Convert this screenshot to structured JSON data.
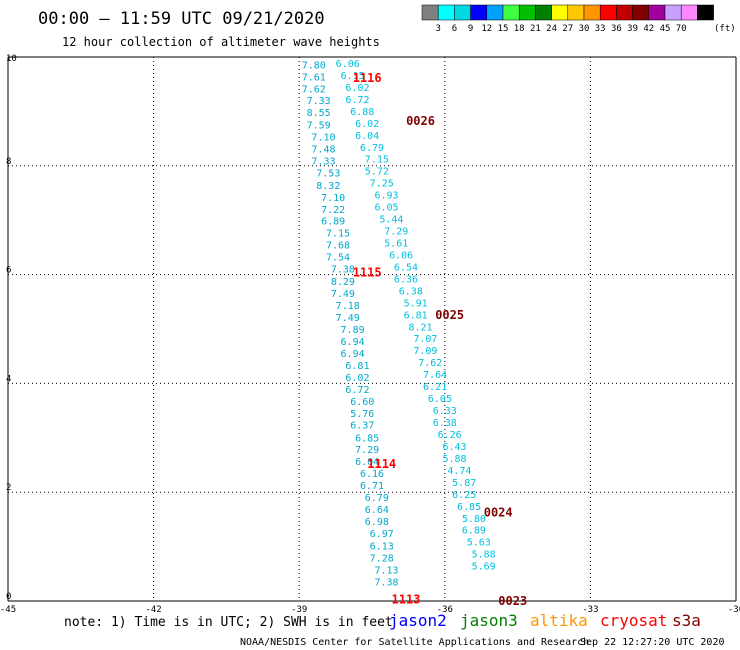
{
  "header": {
    "title": "00:00 – 11:59 UTC 09/21/2020",
    "subtitle": "12 hour collection of altimeter wave heights"
  },
  "colorbar": {
    "unit": "(ft)",
    "colors": [
      "#808080",
      "#00ffff",
      "#00d7e0",
      "#0000ff",
      "#00a0ff",
      "#40ff40",
      "#00c000",
      "#008000",
      "#ffff00",
      "#ffc800",
      "#ff9600",
      "#ff0000",
      "#c00000",
      "#800000",
      "#a000a0",
      "#c8a0ff",
      "#ff88ff",
      "#000000"
    ],
    "labels": [
      "3",
      "6",
      "9",
      "12",
      "15",
      "18",
      "21",
      "24",
      "27",
      "30",
      "33",
      "36",
      "39",
      "42",
      "45",
      "70"
    ]
  },
  "chart_data": {
    "type": "scatter",
    "xlim": [
      -45,
      -30
    ],
    "ylim": [
      0,
      10
    ],
    "xticks": [
      "-45",
      "-42",
      "-39",
      "-36",
      "-33",
      "-30"
    ],
    "yticks": [
      "0",
      "2",
      "4",
      "6",
      "8",
      "10"
    ],
    "grid": true,
    "series": [
      {
        "name": "jason2",
        "color": "#00a8cc",
        "points": [
          {
            "x": -38.7,
            "y": 9.86,
            "v": "7.80"
          },
          {
            "x": -38.7,
            "y": 9.64,
            "v": "7.61"
          },
          {
            "x": -38.7,
            "y": 9.42,
            "v": "7.62"
          },
          {
            "x": -38.6,
            "y": 9.21,
            "v": "7.33"
          },
          {
            "x": -38.6,
            "y": 8.99,
            "v": "8.55"
          },
          {
            "x": -38.6,
            "y": 8.76,
            "v": "7.59"
          },
          {
            "x": -38.5,
            "y": 8.54,
            "v": "7.10"
          },
          {
            "x": -38.5,
            "y": 8.32,
            "v": "7.48"
          },
          {
            "x": -38.5,
            "y": 8.1,
            "v": "7.33"
          },
          {
            "x": -38.4,
            "y": 7.88,
            "v": "7.53"
          },
          {
            "x": -38.4,
            "y": 7.65,
            "v": "8.32"
          },
          {
            "x": -38.3,
            "y": 7.43,
            "v": "7.10"
          },
          {
            "x": -38.3,
            "y": 7.21,
            "v": "7.22"
          },
          {
            "x": -38.3,
            "y": 6.99,
            "v": "6.89"
          },
          {
            "x": -38.2,
            "y": 6.77,
            "v": "7.15"
          },
          {
            "x": -38.2,
            "y": 6.55,
            "v": "7.68"
          },
          {
            "x": -38.2,
            "y": 6.33,
            "v": "7.54"
          },
          {
            "x": -38.1,
            "y": 6.11,
            "v": "7.38"
          },
          {
            "x": -38.1,
            "y": 5.88,
            "v": "8.29"
          },
          {
            "x": -38.1,
            "y": 5.66,
            "v": "7.49"
          },
          {
            "x": -38.0,
            "y": 5.44,
            "v": "7.18"
          },
          {
            "x": -38.0,
            "y": 5.22,
            "v": "7.49"
          },
          {
            "x": -37.9,
            "y": 5.0,
            "v": "7.89"
          },
          {
            "x": -37.9,
            "y": 4.78,
            "v": "6.94"
          },
          {
            "x": -37.9,
            "y": 4.56,
            "v": "6.94"
          },
          {
            "x": -37.8,
            "y": 4.34,
            "v": "6.81"
          },
          {
            "x": -37.8,
            "y": 4.12,
            "v": "6.02"
          },
          {
            "x": -37.8,
            "y": 3.9,
            "v": "6.72"
          },
          {
            "x": -37.7,
            "y": 3.68,
            "v": "6.60"
          },
          {
            "x": -37.7,
            "y": 3.46,
            "v": "5.76"
          },
          {
            "x": -37.7,
            "y": 3.24,
            "v": "6.37"
          },
          {
            "x": -37.6,
            "y": 3.01,
            "v": "6.85"
          },
          {
            "x": -37.6,
            "y": 2.79,
            "v": "7.29"
          },
          {
            "x": -37.6,
            "y": 2.57,
            "v": "6.04"
          },
          {
            "x": -37.5,
            "y": 2.35,
            "v": "6.16"
          },
          {
            "x": -37.5,
            "y": 2.13,
            "v": "6.71"
          },
          {
            "x": -37.4,
            "y": 1.91,
            "v": "6.79"
          },
          {
            "x": -37.4,
            "y": 1.69,
            "v": "6.64"
          },
          {
            "x": -37.4,
            "y": 1.47,
            "v": "6.98"
          },
          {
            "x": -37.3,
            "y": 1.25,
            "v": "6.97"
          },
          {
            "x": -37.3,
            "y": 1.02,
            "v": "6.13"
          },
          {
            "x": -37.3,
            "y": 0.8,
            "v": "7.28"
          },
          {
            "x": -37.2,
            "y": 0.58,
            "v": "7.13"
          },
          {
            "x": -37.2,
            "y": 0.36,
            "v": "7.38"
          }
        ]
      },
      {
        "name": "jason3",
        "color": "#00c0e0",
        "points": [
          {
            "x": -38.0,
            "y": 9.89,
            "v": "6.06"
          },
          {
            "x": -37.9,
            "y": 9.67,
            "v": "6.15"
          },
          {
            "x": -37.8,
            "y": 9.45,
            "v": "6.02"
          },
          {
            "x": -37.8,
            "y": 9.23,
            "v": "6.72"
          },
          {
            "x": -37.7,
            "y": 9.01,
            "v": "6.88"
          },
          {
            "x": -37.6,
            "y": 8.79,
            "v": "6.02"
          },
          {
            "x": -37.6,
            "y": 8.57,
            "v": "6.04"
          },
          {
            "x": -37.5,
            "y": 8.35,
            "v": "6.79"
          },
          {
            "x": -37.4,
            "y": 8.13,
            "v": "7.15"
          },
          {
            "x": -37.4,
            "y": 7.91,
            "v": "5.72"
          },
          {
            "x": -37.3,
            "y": 7.69,
            "v": "7.25"
          },
          {
            "x": -37.2,
            "y": 7.47,
            "v": "6.93"
          },
          {
            "x": -37.2,
            "y": 7.25,
            "v": "6.05"
          },
          {
            "x": -37.1,
            "y": 7.03,
            "v": "5.44"
          },
          {
            "x": -37.0,
            "y": 6.81,
            "v": "7.29"
          },
          {
            "x": -37.0,
            "y": 6.59,
            "v": "5.61"
          },
          {
            "x": -36.9,
            "y": 6.37,
            "v": "6.06"
          },
          {
            "x": -36.8,
            "y": 6.15,
            "v": "6.54"
          },
          {
            "x": -36.8,
            "y": 5.93,
            "v": "6.36"
          },
          {
            "x": -36.7,
            "y": 5.71,
            "v": "6.38"
          },
          {
            "x": -36.6,
            "y": 5.49,
            "v": "5.91"
          },
          {
            "x": -36.6,
            "y": 5.27,
            "v": "6.81"
          },
          {
            "x": -36.5,
            "y": 5.05,
            "v": "8.21"
          },
          {
            "x": -36.4,
            "y": 4.83,
            "v": "7.07"
          },
          {
            "x": -36.4,
            "y": 4.61,
            "v": "7.09"
          },
          {
            "x": -36.3,
            "y": 4.39,
            "v": "7.62"
          },
          {
            "x": -36.2,
            "y": 4.17,
            "v": "7.64"
          },
          {
            "x": -36.2,
            "y": 3.95,
            "v": "6.21"
          },
          {
            "x": -36.1,
            "y": 3.73,
            "v": "6.05"
          },
          {
            "x": -36.0,
            "y": 3.51,
            "v": "6.33"
          },
          {
            "x": -36.0,
            "y": 3.29,
            "v": "6.38"
          },
          {
            "x": -35.9,
            "y": 3.07,
            "v": "6.26"
          },
          {
            "x": -35.8,
            "y": 2.85,
            "v": "6.43"
          },
          {
            "x": -35.8,
            "y": 2.63,
            "v": "5.88"
          },
          {
            "x": -35.7,
            "y": 2.41,
            "v": "4.74"
          },
          {
            "x": -35.6,
            "y": 2.19,
            "v": "5.87"
          },
          {
            "x": -35.6,
            "y": 1.97,
            "v": "6.25"
          },
          {
            "x": -35.5,
            "y": 1.75,
            "v": "6.85"
          },
          {
            "x": -35.4,
            "y": 1.53,
            "v": "5.80"
          },
          {
            "x": -35.4,
            "y": 1.31,
            "v": "6.89"
          },
          {
            "x": -35.3,
            "y": 1.09,
            "v": "5.63"
          },
          {
            "x": -35.2,
            "y": 0.87,
            "v": "5.88"
          },
          {
            "x": -35.2,
            "y": 0.65,
            "v": "5.69"
          }
        ]
      }
    ],
    "time_labels": [
      {
        "x": -37.6,
        "y": 9.61,
        "text": "1116",
        "color": "#ff0000"
      },
      {
        "x": -37.6,
        "y": 6.04,
        "text": "1115",
        "color": "#ff0000"
      },
      {
        "x": -37.3,
        "y": 2.52,
        "text": "1114",
        "color": "#ff0000"
      },
      {
        "x": -36.8,
        "y": 0.03,
        "text": "1113",
        "color": "#ff0000"
      },
      {
        "x": -36.5,
        "y": 8.82,
        "text": "0026",
        "color": "#800000"
      },
      {
        "x": -35.9,
        "y": 5.26,
        "text": "0025",
        "color": "#800000"
      },
      {
        "x": -34.9,
        "y": 1.63,
        "text": "0024",
        "color": "#800000"
      },
      {
        "x": -34.6,
        "y": 0.0,
        "text": "0023",
        "color": "#800000"
      }
    ]
  },
  "legend": {
    "note": "note: 1) Time is in UTC; 2) SWH is in feet",
    "satellites": [
      {
        "name": "jason2",
        "color": "#0000ff"
      },
      {
        "name": "jason3",
        "color": "#008000"
      },
      {
        "name": "altika",
        "color": "#ff9600"
      },
      {
        "name": "cryosat",
        "color": "#ff0000"
      },
      {
        "name": "s3a",
        "color": "#800000"
      }
    ]
  },
  "footer": {
    "credit": "NOAA/NESDIS Center for Satellite Applications and Research",
    "timestamp": "Sep 22 12:27:20 UTC 2020"
  }
}
